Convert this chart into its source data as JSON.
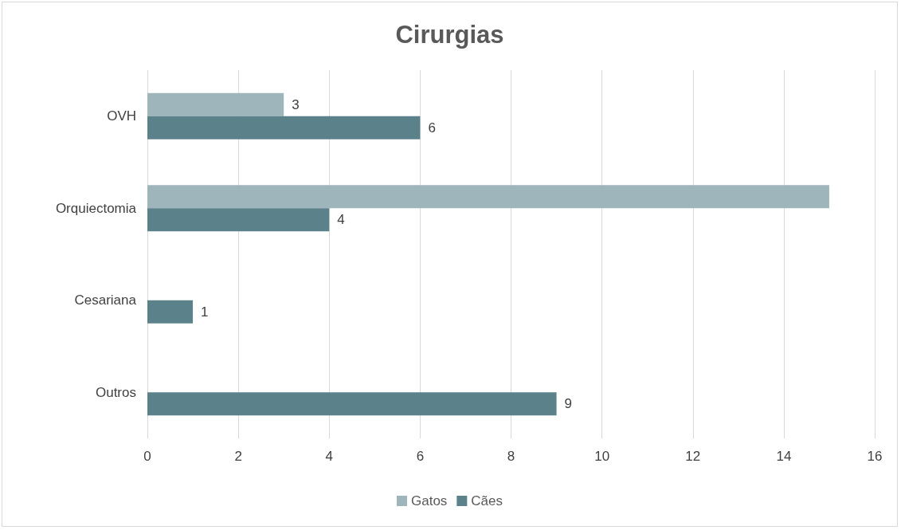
{
  "chart_data": {
    "type": "bar",
    "orientation": "horizontal",
    "title": "Cirurgias",
    "categories": [
      "OVH",
      "Orquiectomia",
      "Cesariana",
      "Outros"
    ],
    "series": [
      {
        "name": "Gatos",
        "color": "#9fb5bc",
        "values": [
          3,
          15,
          null,
          null
        ],
        "value_labels": [
          "3",
          null,
          null,
          null
        ]
      },
      {
        "name": "Cães",
        "color": "#5b818b",
        "values": [
          6,
          4,
          1,
          9
        ],
        "value_labels": [
          "6",
          "4",
          "1",
          "9"
        ]
      }
    ],
    "xlim": [
      0,
      16
    ],
    "xticks": [
      0,
      2,
      4,
      6,
      8,
      10,
      12,
      14,
      16
    ],
    "grid": "x",
    "legend": "bottom"
  }
}
